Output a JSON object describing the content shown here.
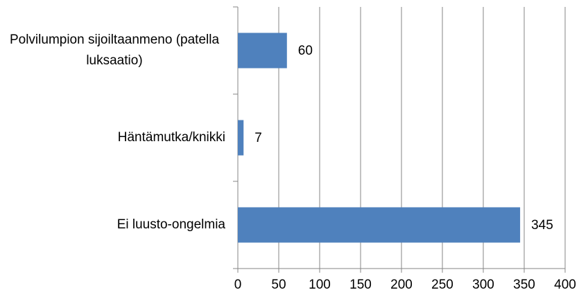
{
  "chart_data": {
    "type": "barh",
    "categories": [
      "Polvilumpion sijoiltaanmeno (patella luksaatio)",
      "Häntämutka/knikki",
      "Ei luusto-ongelmia"
    ],
    "values": [
      60,
      7,
      345
    ],
    "color": "#4f81bd",
    "xlim": [
      0,
      400
    ],
    "xticks": [
      0,
      50,
      100,
      150,
      200,
      250,
      300,
      350,
      400
    ],
    "grid": true
  }
}
